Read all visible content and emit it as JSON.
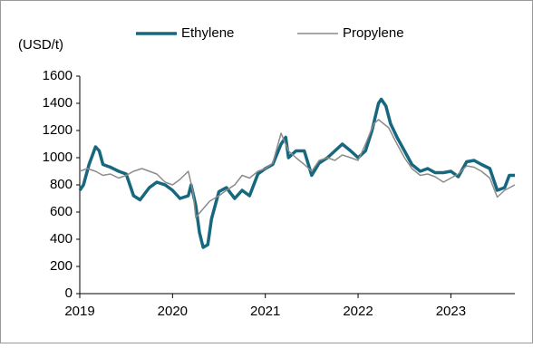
{
  "chart_data": {
    "type": "line",
    "y_label": "(USD/t)",
    "xlim": [
      2019,
      2023.69
    ],
    "xticks": [
      2019,
      2020,
      2021,
      2022,
      2023
    ],
    "ylim": [
      0,
      1600
    ],
    "yticks": [
      0,
      200,
      400,
      600,
      800,
      1000,
      1200,
      1400,
      1600
    ],
    "legend": "top",
    "series": [
      {
        "name": "Ethylene",
        "color": "#17687f",
        "width": 3.5,
        "x": [
          2019.0,
          2019.04,
          2019.1,
          2019.17,
          2019.21,
          2019.25,
          2019.33,
          2019.42,
          2019.5,
          2019.58,
          2019.65,
          2019.75,
          2019.83,
          2019.92,
          2020.0,
          2020.08,
          2020.17,
          2020.2,
          2020.25,
          2020.29,
          2020.33,
          2020.38,
          2020.42,
          2020.5,
          2020.58,
          2020.67,
          2020.75,
          2020.83,
          2020.92,
          2021.0,
          2021.08,
          2021.17,
          2021.22,
          2021.25,
          2021.33,
          2021.42,
          2021.5,
          2021.58,
          2021.67,
          2021.75,
          2021.83,
          2021.92,
          2022.0,
          2022.08,
          2022.15,
          2022.22,
          2022.25,
          2022.3,
          2022.35,
          2022.42,
          2022.5,
          2022.58,
          2022.67,
          2022.75,
          2022.83,
          2022.92,
          2023.0,
          2023.08,
          2023.17,
          2023.25,
          2023.33,
          2023.42,
          2023.5,
          2023.58,
          2023.63,
          2023.69
        ],
        "values": [
          760,
          800,
          950,
          1080,
          1050,
          950,
          930,
          900,
          880,
          720,
          690,
          780,
          820,
          800,
          760,
          700,
          720,
          800,
          650,
          450,
          340,
          360,
          550,
          750,
          780,
          700,
          760,
          720,
          880,
          920,
          950,
          1100,
          1150,
          1000,
          1050,
          1050,
          870,
          960,
          1000,
          1050,
          1100,
          1050,
          1000,
          1050,
          1200,
          1400,
          1430,
          1380,
          1250,
          1150,
          1050,
          950,
          900,
          920,
          890,
          890,
          900,
          860,
          970,
          980,
          950,
          920,
          760,
          780,
          870,
          870
        ]
      },
      {
        "name": "Propylene",
        "color": "#8c8c8c",
        "width": 1.5,
        "x": [
          2019.0,
          2019.08,
          2019.17,
          2019.25,
          2019.33,
          2019.42,
          2019.5,
          2019.58,
          2019.67,
          2019.75,
          2019.83,
          2019.92,
          2020.0,
          2020.08,
          2020.17,
          2020.22,
          2020.25,
          2020.3,
          2020.4,
          2020.5,
          2020.58,
          2020.67,
          2020.75,
          2020.83,
          2020.92,
          2021.0,
          2021.08,
          2021.17,
          2021.25,
          2021.33,
          2021.42,
          2021.5,
          2021.58,
          2021.67,
          2021.75,
          2021.83,
          2021.92,
          2022.0,
          2022.08,
          2022.17,
          2022.22,
          2022.33,
          2022.42,
          2022.5,
          2022.58,
          2022.67,
          2022.75,
          2022.83,
          2022.92,
          2023.0,
          2023.08,
          2023.17,
          2023.25,
          2023.33,
          2023.42,
          2023.5,
          2023.58,
          2023.69
        ],
        "values": [
          900,
          920,
          900,
          870,
          880,
          850,
          870,
          900,
          920,
          900,
          880,
          820,
          800,
          840,
          900,
          750,
          560,
          600,
          680,
          720,
          760,
          800,
          870,
          850,
          900,
          920,
          960,
          1180,
          1050,
          1000,
          950,
          900,
          980,
          1000,
          980,
          1020,
          1000,
          980,
          1100,
          1250,
          1280,
          1220,
          1100,
          1000,
          920,
          870,
          880,
          860,
          820,
          850,
          880,
          940,
          930,
          900,
          850,
          710,
          760,
          800
        ]
      }
    ]
  }
}
